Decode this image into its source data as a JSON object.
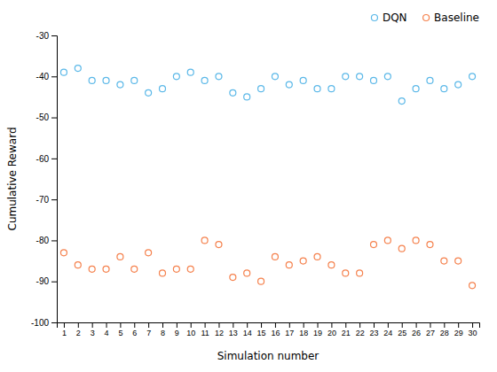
{
  "chart_data": {
    "type": "scatter",
    "x_label": "Simulation number",
    "y_label": "Cumulative Reward",
    "x": [
      1,
      2,
      3,
      4,
      5,
      6,
      7,
      8,
      9,
      10,
      11,
      12,
      13,
      14,
      15,
      16,
      17,
      18,
      19,
      20,
      21,
      22,
      23,
      24,
      25,
      26,
      27,
      28,
      29,
      30
    ],
    "series": [
      {
        "name": "DQN",
        "color": "#5bb8e8",
        "marker": "circle-open",
        "values": [
          -39,
          -38,
          -41,
          -41,
          -42,
          -41,
          -44,
          -43,
          -40,
          -39,
          -41,
          -40,
          -44,
          -45,
          -43,
          -40,
          -42,
          -41,
          -43,
          -43,
          -40,
          -40,
          -41,
          -40,
          -46,
          -43,
          -41,
          -43,
          -42,
          -40
        ]
      },
      {
        "name": "Baseline",
        "color": "#f5824e",
        "marker": "circle-open",
        "values": [
          -83,
          -86,
          -87,
          -87,
          -84,
          -87,
          -83,
          -88,
          -87,
          -87,
          -80,
          -81,
          -89,
          -88,
          -90,
          -84,
          -86,
          -85,
          -84,
          -86,
          -88,
          -88,
          -81,
          -80,
          -82,
          -80,
          -81,
          -85,
          -85,
          -91
        ]
      }
    ],
    "xlim": [
      0.5,
      30.5
    ],
    "xticks": [
      1,
      2,
      3,
      4,
      5,
      6,
      7,
      8,
      9,
      10,
      11,
      12,
      13,
      14,
      15,
      16,
      17,
      18,
      19,
      20,
      21,
      22,
      23,
      24,
      25,
      26,
      27,
      28,
      29,
      30
    ],
    "ylim": [
      -100,
      -30
    ],
    "yticks": [
      -100,
      -90,
      -80,
      -70,
      -60,
      -50,
      -40,
      -30
    ],
    "grid": false,
    "legend": "upper right"
  }
}
